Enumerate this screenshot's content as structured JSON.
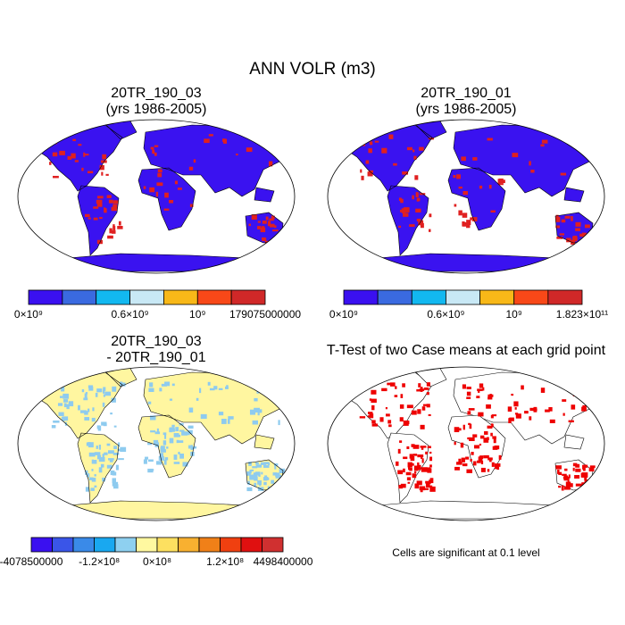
{
  "title": "ANN VOLR (m3)",
  "panels": [
    {
      "title": [
        "20TR_190_03",
        "(yrs 1986-2005)"
      ],
      "colorbar": {
        "colors": [
          "#3a10f0",
          "#3a6ae0",
          "#12b8f0",
          "#c8e8f5",
          "#f8b818",
          "#f84818",
          "#d02828"
        ],
        "labels": [
          "0×10⁹",
          "0.6×10⁹",
          "10⁹",
          "179075000000"
        ]
      }
    },
    {
      "title": [
        "20TR_190_01",
        "(yrs 1986-2005)"
      ],
      "colorbar": {
        "colors": [
          "#3a10f0",
          "#3a6ae0",
          "#12b8f0",
          "#c8e8f5",
          "#f8b818",
          "#f84818",
          "#d02828"
        ],
        "labels": [
          "0×10⁹",
          "0.6×10⁹",
          "10⁹",
          "1.823×10¹¹"
        ]
      }
    },
    {
      "title": [
        "20TR_190_03",
        "- 20TR_190_01"
      ],
      "colorbar": {
        "colors": [
          "#3a10f0",
          "#3a55e8",
          "#3a8ae8",
          "#19a8f0",
          "#8ed0f0",
          "#fff8a0",
          "#fde060",
          "#f8b030",
          "#f08018",
          "#f04010",
          "#e01010",
          "#d03030"
        ],
        "labels": [
          "-4078500000",
          "-1.2×10⁸",
          "0×10⁸",
          "1.2×10⁸",
          "4498400000"
        ]
      }
    },
    {
      "title": [
        "T-Test of two Case means at each grid point"
      ],
      "note": "Cells are significant at 0.1 level"
    }
  ]
}
